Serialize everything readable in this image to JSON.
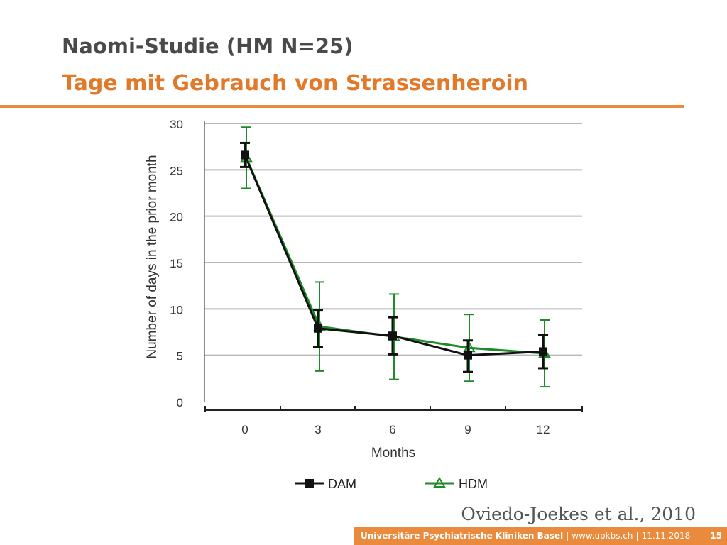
{
  "slide": {
    "title": "Naomi-Studie (HM N=25)",
    "subtitle": "Tage mit Gebrauch von Strassenheroin",
    "citation": "Oviedo-Joekes et al., 2010"
  },
  "footer": {
    "institution": "Universitäre Psychiatrische Kliniken Basel",
    "url": "www.upkbs.ch",
    "date": "11.11.2018",
    "page": "15",
    "color": "#e98a3c"
  },
  "chart_data": {
    "type": "line",
    "xlabel": "Months",
    "ylabel": "Number of days in the prior month",
    "x": [
      0,
      3,
      6,
      9,
      12
    ],
    "categories": [
      "0",
      "3",
      "6",
      "9",
      "12"
    ],
    "yticks": [
      0,
      5,
      10,
      15,
      20,
      25,
      30
    ],
    "ylim": [
      0,
      30
    ],
    "grid": true,
    "legend": "bottom",
    "series": [
      {
        "name": "DAM",
        "color": "#111111",
        "marker": "square",
        "values": [
          26.6,
          7.9,
          7.1,
          5.0,
          5.4
        ],
        "err_low": [
          25.3,
          5.9,
          5.1,
          3.2,
          3.6
        ],
        "err_high": [
          27.9,
          9.9,
          9.1,
          6.6,
          7.2
        ]
      },
      {
        "name": "HDM",
        "color": "#1e8a28",
        "marker": "triangle",
        "values": [
          26.3,
          8.1,
          7.0,
          5.8,
          5.2
        ],
        "err_low": [
          23.0,
          3.3,
          2.4,
          2.2,
          1.6
        ],
        "err_high": [
          29.6,
          12.9,
          11.6,
          9.4,
          8.8
        ]
      }
    ]
  }
}
